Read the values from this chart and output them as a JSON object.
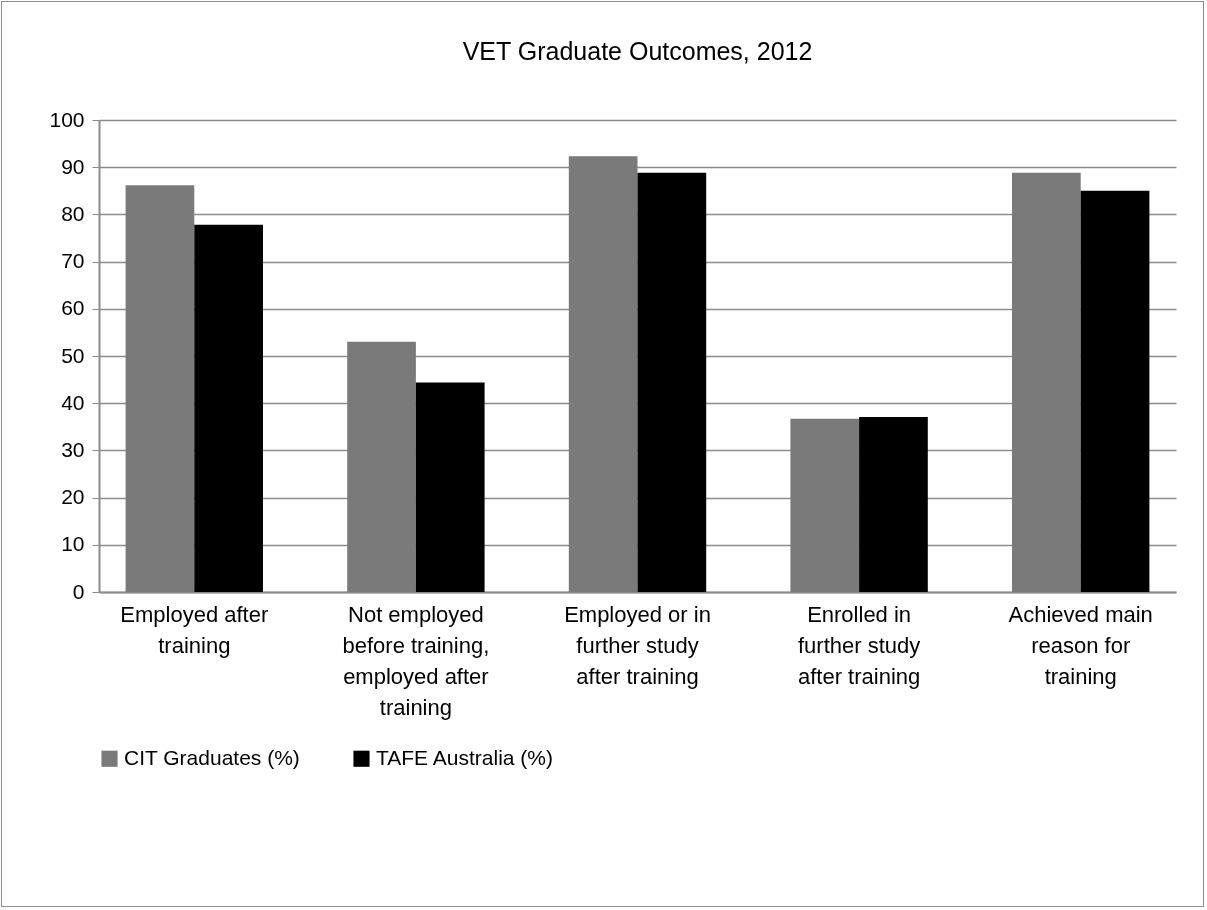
{
  "chart_data": {
    "type": "bar",
    "title": "VET Graduate Outcomes, 2012",
    "categories": [
      "Employed after training",
      "Not employed before training, employed after training",
      "Employed or in further study after training",
      "Enrolled in further study after training",
      "Achieved main reason for training"
    ],
    "series": [
      {
        "name": "CIT Graduates (%)",
        "color": "#7a7a7a",
        "values": [
          86.2,
          53.0,
          92.3,
          36.7,
          88.8
        ]
      },
      {
        "name": "TAFE Australia (%)",
        "color": "#000000",
        "values": [
          77.8,
          44.4,
          88.8,
          37.1,
          85.0
        ]
      }
    ],
    "ylim": [
      0,
      100
    ],
    "yticks": [
      0,
      10,
      20,
      30,
      40,
      50,
      60,
      70,
      80,
      90,
      100
    ],
    "grid": "y",
    "legend": "bottom"
  }
}
